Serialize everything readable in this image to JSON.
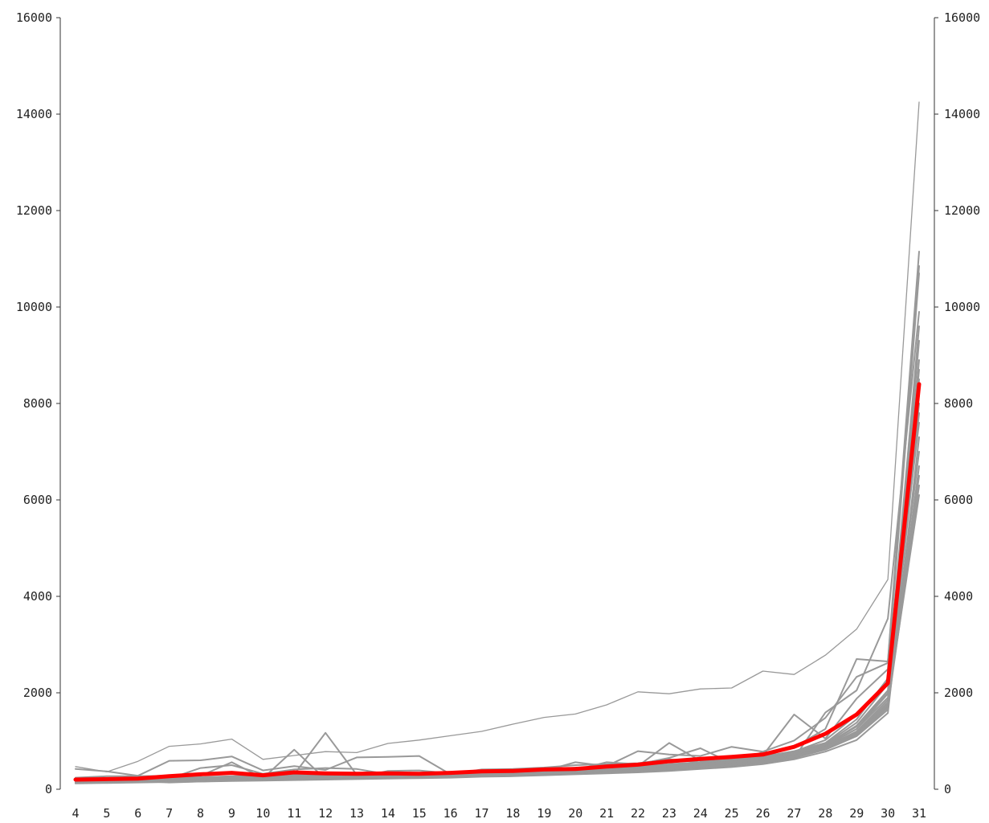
{
  "chart_data": {
    "type": "line",
    "title": "",
    "xlabel": "",
    "ylabel": "",
    "x": [
      4,
      5,
      6,
      7,
      8,
      9,
      10,
      11,
      12,
      13,
      14,
      15,
      16,
      17,
      18,
      19,
      20,
      21,
      22,
      23,
      24,
      25,
      26,
      27,
      28,
      29,
      30,
      31
    ],
    "xlim": [
      4,
      31
    ],
    "ylim": [
      0,
      16000
    ],
    "yticks": [
      0,
      2000,
      4000,
      6000,
      8000,
      10000,
      12000,
      14000,
      16000
    ],
    "ytick_labels": [
      "0",
      "2000",
      "4000",
      "6000",
      "8000",
      "10000",
      "12000",
      "14000",
      "16000"
    ],
    "xtick_labels": [
      "4",
      "5",
      "6",
      "7",
      "8",
      "9",
      "10",
      "11",
      "12",
      "13",
      "14",
      "15",
      "16",
      "17",
      "18",
      "19",
      "20",
      "21",
      "22",
      "23",
      "24",
      "25",
      "26",
      "27",
      "28",
      "29",
      "30",
      "31"
    ],
    "y_axis_sides": "left and right",
    "grid": false,
    "legend": "none",
    "colors": {
      "background": "#ffffff",
      "axis": "#333333",
      "series": "#999999",
      "highlight": "#ff0000"
    },
    "series": [
      {
        "values": [
          470,
          360,
          580,
          890,
          940,
          1040,
          620,
          700,
          780,
          760,
          950,
          1020,
          1110,
          1200,
          1350,
          1490,
          1560,
          1750,
          2020,
          1980,
          2080,
          2100,
          2450,
          2380,
          2780,
          3320,
          4350,
          14250
        ],
        "emphasis": "thin"
      },
      {
        "values": [
          420,
          370,
          280,
          590,
          600,
          680,
          390,
          480,
          400,
          660,
          670,
          690,
          310,
          410,
          420,
          450,
          500,
          520,
          540,
          620,
          560,
          600,
          700,
          870,
          1250,
          2700,
          2650,
          11150
        ]
      },
      {
        "values": [
          240,
          270,
          270,
          280,
          280,
          560,
          230,
          820,
          210,
          240,
          380,
          390,
          330,
          350,
          370,
          380,
          560,
          480,
          790,
          720,
          690,
          880,
          780,
          1010,
          1480,
          2330,
          2620,
          10850
        ]
      },
      {
        "values": [
          150,
          150,
          170,
          140,
          160,
          180,
          210,
          310,
          1170,
          300,
          330,
          330,
          330,
          340,
          360,
          400,
          450,
          460,
          480,
          960,
          590,
          620,
          700,
          1550,
          1050,
          1880,
          2490,
          10700
        ]
      },
      {
        "values": [
          180,
          180,
          180,
          220,
          440,
          500,
          320,
          410,
          440,
          420,
          310,
          290,
          320,
          380,
          380,
          390,
          400,
          560,
          520,
          650,
          850,
          540,
          770,
          650,
          1590,
          2050,
          3540,
          9900
        ]
      },
      {
        "values": [
          160,
          200,
          200,
          260,
          300,
          330,
          260,
          300,
          310,
          330,
          250,
          260,
          330,
          310,
          330,
          360,
          380,
          400,
          430,
          510,
          560,
          600,
          680,
          780,
          1020,
          1540,
          2240,
          9600
        ]
      },
      {
        "values": [
          170,
          170,
          180,
          200,
          210,
          220,
          230,
          280,
          260,
          270,
          280,
          290,
          300,
          310,
          320,
          340,
          360,
          380,
          410,
          450,
          500,
          550,
          620,
          710,
          900,
          1250,
          1980,
          9300
        ]
      },
      {
        "values": [
          190,
          190,
          200,
          210,
          230,
          240,
          250,
          260,
          280,
          290,
          300,
          310,
          320,
          330,
          350,
          370,
          390,
          410,
          440,
          480,
          520,
          570,
          630,
          730,
          920,
          1320,
          2050,
          8900
        ]
      },
      {
        "values": [
          140,
          150,
          160,
          170,
          180,
          200,
          210,
          230,
          240,
          250,
          260,
          270,
          280,
          300,
          310,
          330,
          350,
          370,
          400,
          440,
          480,
          530,
          590,
          690,
          860,
          1160,
          1760,
          8700
        ]
      },
      {
        "values": [
          200,
          210,
          210,
          220,
          240,
          260,
          270,
          280,
          300,
          310,
          320,
          330,
          340,
          350,
          370,
          390,
          410,
          430,
          460,
          500,
          540,
          590,
          650,
          760,
          940,
          1380,
          2180,
          8500
        ]
      },
      {
        "values": [
          130,
          140,
          150,
          160,
          170,
          180,
          190,
          200,
          220,
          230,
          240,
          250,
          260,
          270,
          290,
          300,
          320,
          340,
          370,
          400,
          440,
          490,
          550,
          650,
          820,
          1100,
          1650,
          8000
        ]
      },
      {
        "values": [
          210,
          200,
          220,
          230,
          250,
          270,
          280,
          290,
          310,
          320,
          330,
          340,
          350,
          360,
          380,
          400,
          420,
          450,
          480,
          520,
          560,
          610,
          680,
          790,
          960,
          1450,
          2300,
          7600
        ]
      },
      {
        "values": [
          120,
          130,
          140,
          150,
          160,
          170,
          180,
          190,
          200,
          210,
          220,
          230,
          240,
          260,
          270,
          290,
          310,
          330,
          350,
          380,
          420,
          460,
          520,
          620,
          780,
          1020,
          1580,
          7300
        ]
      },
      {
        "values": [
          160,
          170,
          180,
          190,
          200,
          220,
          230,
          240,
          250,
          260,
          270,
          280,
          300,
          310,
          330,
          350,
          370,
          390,
          420,
          460,
          500,
          540,
          600,
          700,
          880,
          1200,
          1850,
          7000
        ]
      },
      {
        "values": [
          150,
          160,
          170,
          180,
          190,
          210,
          220,
          230,
          240,
          250,
          260,
          270,
          290,
          300,
          320,
          340,
          360,
          380,
          410,
          440,
          480,
          520,
          580,
          680,
          850,
          1150,
          1720,
          6700
        ]
      },
      {
        "values": [
          180,
          190,
          200,
          210,
          220,
          230,
          240,
          250,
          270,
          280,
          290,
          300,
          310,
          320,
          340,
          360,
          380,
          400,
          430,
          470,
          510,
          550,
          610,
          720,
          900,
          1250,
          1900,
          6500
        ]
      },
      {
        "values": [
          140,
          150,
          160,
          170,
          180,
          190,
          200,
          210,
          230,
          240,
          250,
          260,
          270,
          290,
          300,
          320,
          340,
          360,
          390,
          420,
          460,
          500,
          560,
          660,
          830,
          1120,
          1700,
          6300
        ]
      },
      {
        "values": [
          170,
          180,
          190,
          200,
          210,
          220,
          230,
          240,
          260,
          270,
          280,
          290,
          300,
          310,
          330,
          350,
          370,
          390,
          420,
          450,
          490,
          530,
          590,
          690,
          860,
          1180,
          1800,
          6100
        ]
      },
      {
        "values": [
          190,
          200,
          210,
          220,
          230,
          250,
          260,
          270,
          280,
          290,
          300,
          310,
          320,
          330,
          350,
          370,
          390,
          410,
          440,
          480,
          520,
          560,
          620,
          730,
          920,
          1300,
          2000,
          8200
        ]
      },
      {
        "values": [
          155,
          165,
          175,
          185,
          195,
          205,
          215,
          225,
          235,
          245,
          255,
          265,
          275,
          285,
          305,
          325,
          345,
          365,
          395,
          430,
          470,
          510,
          570,
          670,
          840,
          1130,
          1690,
          7800
        ]
      }
    ],
    "highlight_series": {
      "color": "#ff0000",
      "values": [
        200,
        210,
        220,
        270,
        310,
        340,
        290,
        350,
        330,
        320,
        330,
        320,
        340,
        370,
        380,
        410,
        420,
        470,
        510,
        580,
        630,
        670,
        720,
        880,
        1150,
        1550,
        2200,
        8400
      ]
    }
  }
}
